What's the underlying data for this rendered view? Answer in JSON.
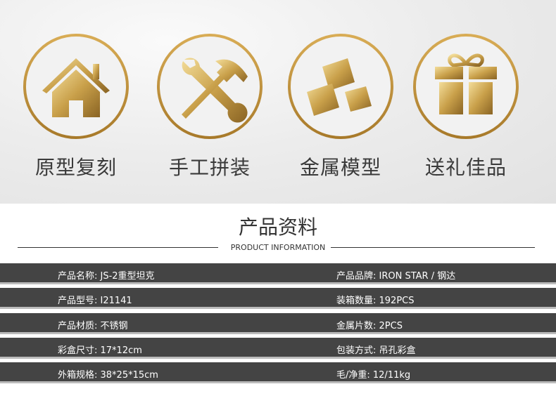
{
  "features": [
    {
      "icon": "house-icon",
      "label": "原型复刻"
    },
    {
      "icon": "tools-icon",
      "label": "手工拼装"
    },
    {
      "icon": "gold-bars-icon",
      "label": "金属模型"
    },
    {
      "icon": "gift-icon",
      "label": "送礼佳品"
    }
  ],
  "section": {
    "title": "产品资料",
    "subtitle": "PRODUCT INFORMATION"
  },
  "rows": [
    {
      "left": "产品名称: JS-2重型坦克",
      "right": "产品品牌: IRON STAR / 钢达"
    },
    {
      "left": "产品型号: I21141",
      "right": "装箱数量: 192PCS"
    },
    {
      "left": "产品材质: 不锈钢",
      "right": "金属片数: 2PCS"
    },
    {
      "left": "彩盒尺寸: 17*12cm",
      "right": "包装方式: 吊孔彩盒"
    },
    {
      "left": "外箱规格: 38*25*15cm",
      "right": "毛/净重: 12/11kg"
    }
  ],
  "colors": {
    "gold": "#c9a04a",
    "row_bg": "#444444",
    "accent_line": "#bbbbbb"
  }
}
